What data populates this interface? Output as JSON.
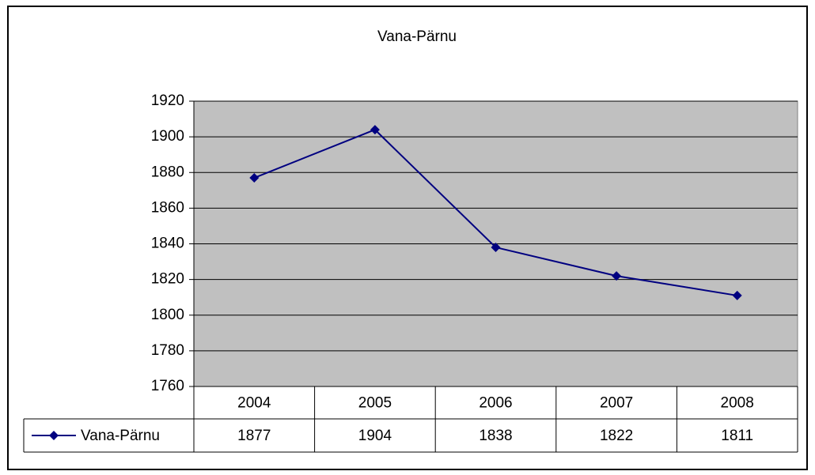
{
  "chart_data": {
    "type": "line",
    "title": "Vana-Pärnu",
    "categories": [
      "2004",
      "2005",
      "2006",
      "2007",
      "2008"
    ],
    "series": [
      {
        "name": "Vana-Pärnu",
        "color": "#000080",
        "values": [
          1877,
          1904,
          1838,
          1822,
          1811
        ]
      }
    ],
    "ylim": [
      1760,
      1920
    ],
    "yticks": [
      1760,
      1780,
      1800,
      1820,
      1840,
      1860,
      1880,
      1900,
      1920
    ],
    "grid": true,
    "plot_background": "#c0c0c0"
  }
}
